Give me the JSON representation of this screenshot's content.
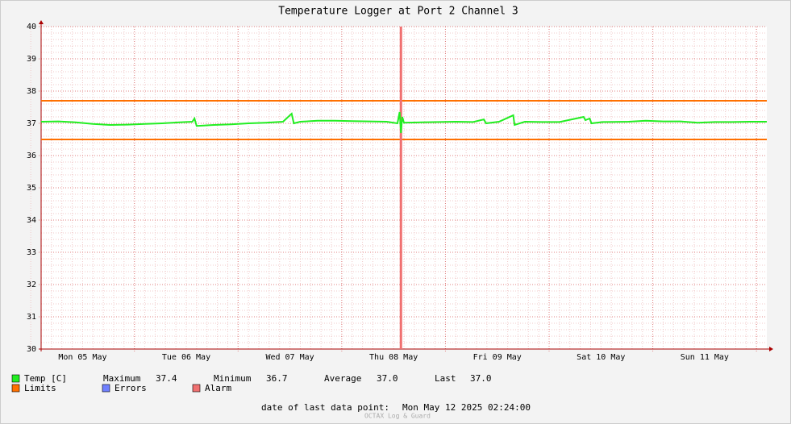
{
  "chart_data": {
    "type": "line",
    "title": "Temperature Logger at Port 2 Channel 3",
    "x": [
      0,
      4,
      8,
      12,
      16,
      20,
      24,
      28,
      32,
      35,
      35.5,
      36,
      40,
      44,
      48,
      52,
      56,
      58,
      58.5,
      60,
      64,
      68,
      72,
      76,
      80,
      82.5,
      83,
      83.3,
      83.6,
      84,
      88,
      92,
      96,
      100,
      102.5,
      103,
      106,
      109.3,
      109.6,
      112,
      116,
      120,
      125.6,
      126,
      127,
      127.4,
      130,
      136,
      140,
      144,
      148,
      152,
      156,
      160,
      164,
      168
    ],
    "series": [
      {
        "name": "Temp [C]",
        "color": "#22ee22",
        "values": [
          37.05,
          37.06,
          37.03,
          36.98,
          36.95,
          36.96,
          36.98,
          37.0,
          37.03,
          37.05,
          37.15,
          36.92,
          36.95,
          36.97,
          37.0,
          37.02,
          37.05,
          37.3,
          37.0,
          37.05,
          37.08,
          37.08,
          37.07,
          37.06,
          37.05,
          37.0,
          37.35,
          36.7,
          37.2,
          37.02,
          37.03,
          37.04,
          37.05,
          37.04,
          37.12,
          37.0,
          37.05,
          37.25,
          36.95,
          37.05,
          37.04,
          37.04,
          37.2,
          37.1,
          37.15,
          37.0,
          37.04,
          37.05,
          37.08,
          37.06,
          37.06,
          37.02,
          37.04,
          37.04,
          37.05,
          37.05
        ]
      }
    ],
    "limits": {
      "name": "Limits",
      "color": "#ff7000",
      "values": [
        36.5,
        37.7
      ]
    },
    "errors": {
      "name": "Errors",
      "color": "#7080ff"
    },
    "alarm": {
      "name": "Alarm",
      "color": "#f07070",
      "x": [
        83.3
      ]
    },
    "xlim": [
      0,
      168
    ],
    "xticks": [
      {
        "value": 9.6,
        "label": "Mon 05 May"
      },
      {
        "value": 33.6,
        "label": "Tue 06 May"
      },
      {
        "value": 57.6,
        "label": "Wed 07 May"
      },
      {
        "value": 81.6,
        "label": "Thu 08 May"
      },
      {
        "value": 105.6,
        "label": "Fri 09 May"
      },
      {
        "value": 129.6,
        "label": "Sat 10 May"
      },
      {
        "value": 153.6,
        "label": "Sun 11 May"
      }
    ],
    "ylim": [
      30,
      40
    ],
    "yticks": [
      30,
      31,
      32,
      33,
      34,
      35,
      36,
      37,
      38,
      39,
      40
    ],
    "grid": true,
    "stats": [
      {
        "label": "Maximum",
        "value": "37.4"
      },
      {
        "label": "Minimum",
        "value": "36.7"
      },
      {
        "label": "Average",
        "value": "37.0"
      },
      {
        "label": "Last",
        "value": "37.0"
      }
    ],
    "footer": {
      "label": "date of last data point:",
      "value": "Mon May 12 2025 02:24:00"
    },
    "watermark": "OCTAX Log & Guard"
  }
}
